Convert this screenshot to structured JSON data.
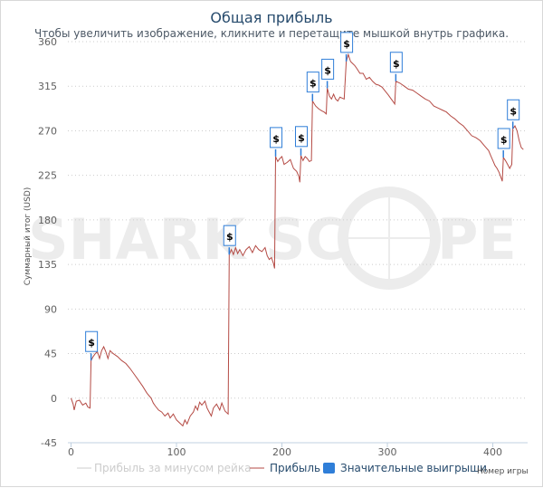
{
  "header": {
    "title": "Общая прибыль",
    "subtitle": "Чтобы увеличить изображение, кликните и перетащите мышкой внутрь графика."
  },
  "watermark": {
    "part1": "SHARK SC",
    "part2": "PE"
  },
  "colors": {
    "profit_line": "#b44a44",
    "rake_line": "#cccccc",
    "big_win": "#2f7ed8",
    "marker_border": "#2f7ed8",
    "grid": "#cccccc",
    "title": "#274b6d"
  },
  "chart_data": {
    "type": "line",
    "title": "Общая прибыль",
    "xlabel": "Номер игры",
    "ylabel": "Суммарный итог (USD)",
    "xlim": [
      -3,
      433
    ],
    "ylim": [
      -45,
      360
    ],
    "x_ticks": [
      "0",
      "100",
      "200",
      "300",
      "400"
    ],
    "x_tick_values": [
      0,
      100,
      200,
      300,
      400
    ],
    "y_ticks": [
      "-45",
      "0",
      "45",
      "90",
      "135",
      "180",
      "225",
      "270",
      "315",
      "360"
    ],
    "y_tick_values": [
      -45,
      0,
      45,
      90,
      135,
      180,
      225,
      270,
      315,
      360
    ],
    "grid": true,
    "legend_position": "bottom",
    "legend": [
      {
        "label": "Прибыль за минусом рейка",
        "style": "line-faint"
      },
      {
        "label": "Прибыль",
        "style": "line"
      },
      {
        "label": "Значительные выигрыши",
        "style": "box"
      }
    ],
    "series": [
      {
        "name": "Прибыль",
        "points": [
          [
            0,
            0
          ],
          [
            2,
            -6
          ],
          [
            3,
            -12
          ],
          [
            5,
            -3
          ],
          [
            8,
            -2
          ],
          [
            11,
            -7
          ],
          [
            14,
            -5
          ],
          [
            16,
            -9
          ],
          [
            18,
            -10
          ],
          [
            19,
            38
          ],
          [
            21,
            42
          ],
          [
            23,
            45
          ],
          [
            25,
            47
          ],
          [
            27,
            40
          ],
          [
            29,
            48
          ],
          [
            31,
            52
          ],
          [
            33,
            47
          ],
          [
            35,
            40
          ],
          [
            37,
            48
          ],
          [
            40,
            45
          ],
          [
            44,
            42
          ],
          [
            48,
            38
          ],
          [
            52,
            35
          ],
          [
            56,
            30
          ],
          [
            60,
            24
          ],
          [
            64,
            18
          ],
          [
            68,
            12
          ],
          [
            72,
            5
          ],
          [
            76,
            0
          ],
          [
            78,
            -5
          ],
          [
            80,
            -8
          ],
          [
            83,
            -12
          ],
          [
            86,
            -14
          ],
          [
            89,
            -18
          ],
          [
            92,
            -15
          ],
          [
            94,
            -20
          ],
          [
            97,
            -16
          ],
          [
            100,
            -22
          ],
          [
            103,
            -25
          ],
          [
            106,
            -28
          ],
          [
            108,
            -22
          ],
          [
            110,
            -26
          ],
          [
            113,
            -18
          ],
          [
            116,
            -14
          ],
          [
            118,
            -8
          ],
          [
            120,
            -12
          ],
          [
            122,
            -4
          ],
          [
            124,
            -7
          ],
          [
            127,
            -3
          ],
          [
            129,
            -10
          ],
          [
            131,
            -14
          ],
          [
            133,
            -18
          ],
          [
            135,
            -10
          ],
          [
            138,
            -6
          ],
          [
            141,
            -12
          ],
          [
            143,
            -5
          ],
          [
            146,
            -13
          ],
          [
            148,
            -15
          ],
          [
            149,
            -16
          ],
          [
            150,
            145
          ],
          [
            152,
            150
          ],
          [
            154,
            145
          ],
          [
            156,
            152
          ],
          [
            158,
            146
          ],
          [
            160,
            150
          ],
          [
            163,
            144
          ],
          [
            166,
            150
          ],
          [
            169,
            153
          ],
          [
            172,
            147
          ],
          [
            175,
            154
          ],
          [
            178,
            150
          ],
          [
            181,
            148
          ],
          [
            184,
            152
          ],
          [
            186,
            144
          ],
          [
            188,
            140
          ],
          [
            190,
            142
          ],
          [
            192,
            136
          ],
          [
            193,
            131
          ],
          [
            194,
            244
          ],
          [
            196,
            239
          ],
          [
            198,
            242
          ],
          [
            200,
            244
          ],
          [
            202,
            236
          ],
          [
            205,
            238
          ],
          [
            208,
            241
          ],
          [
            211,
            232
          ],
          [
            214,
            229
          ],
          [
            216,
            224
          ],
          [
            217,
            218
          ],
          [
            218,
            245
          ],
          [
            220,
            240
          ],
          [
            222,
            244
          ],
          [
            224,
            242
          ],
          [
            226,
            239
          ],
          [
            228,
            240
          ],
          [
            229,
            300
          ],
          [
            232,
            295
          ],
          [
            235,
            292
          ],
          [
            238,
            290
          ],
          [
            240,
            289
          ],
          [
            242,
            287
          ],
          [
            243,
            313
          ],
          [
            245,
            305
          ],
          [
            247,
            302
          ],
          [
            249,
            307
          ],
          [
            251,
            302
          ],
          [
            253,
            300
          ],
          [
            255,
            304
          ],
          [
            257,
            303
          ],
          [
            259,
            302
          ],
          [
            261,
            340
          ],
          [
            263,
            347
          ],
          [
            265,
            340
          ],
          [
            267,
            338
          ],
          [
            269,
            336
          ],
          [
            271,
            333
          ],
          [
            274,
            328
          ],
          [
            277,
            328
          ],
          [
            280,
            322
          ],
          [
            283,
            324
          ],
          [
            286,
            320
          ],
          [
            289,
            317
          ],
          [
            292,
            316
          ],
          [
            295,
            314
          ],
          [
            298,
            310
          ],
          [
            301,
            306
          ],
          [
            303,
            303
          ],
          [
            305,
            300
          ],
          [
            307,
            297
          ],
          [
            308,
            320
          ],
          [
            312,
            318
          ],
          [
            316,
            315
          ],
          [
            320,
            312
          ],
          [
            324,
            311
          ],
          [
            328,
            308
          ],
          [
            332,
            305
          ],
          [
            336,
            302
          ],
          [
            340,
            300
          ],
          [
            344,
            295
          ],
          [
            348,
            293
          ],
          [
            352,
            291
          ],
          [
            356,
            289
          ],
          [
            360,
            285
          ],
          [
            364,
            282
          ],
          [
            368,
            278
          ],
          [
            372,
            275
          ],
          [
            376,
            270
          ],
          [
            380,
            265
          ],
          [
            384,
            263
          ],
          [
            388,
            260
          ],
          [
            392,
            255
          ],
          [
            396,
            250
          ],
          [
            398,
            245
          ],
          [
            400,
            240
          ],
          [
            402,
            235
          ],
          [
            404,
            232
          ],
          [
            406,
            228
          ],
          [
            408,
            222
          ],
          [
            409,
            219
          ],
          [
            410,
            243
          ],
          [
            412,
            240
          ],
          [
            414,
            236
          ],
          [
            416,
            232
          ],
          [
            418,
            236
          ],
          [
            419,
            272
          ],
          [
            421,
            275
          ],
          [
            423,
            270
          ],
          [
            425,
            260
          ],
          [
            427,
            253
          ],
          [
            429,
            251
          ]
        ]
      }
    ],
    "big_wins": [
      {
        "x": 19,
        "y": 38
      },
      {
        "x": 150,
        "y": 145
      },
      {
        "x": 194,
        "y": 244
      },
      {
        "x": 218,
        "y": 245
      },
      {
        "x": 229,
        "y": 300
      },
      {
        "x": 243,
        "y": 313
      },
      {
        "x": 261,
        "y": 340
      },
      {
        "x": 308,
        "y": 320
      },
      {
        "x": 410,
        "y": 243
      },
      {
        "x": 419,
        "y": 272
      }
    ],
    "big_win_label": "$"
  }
}
